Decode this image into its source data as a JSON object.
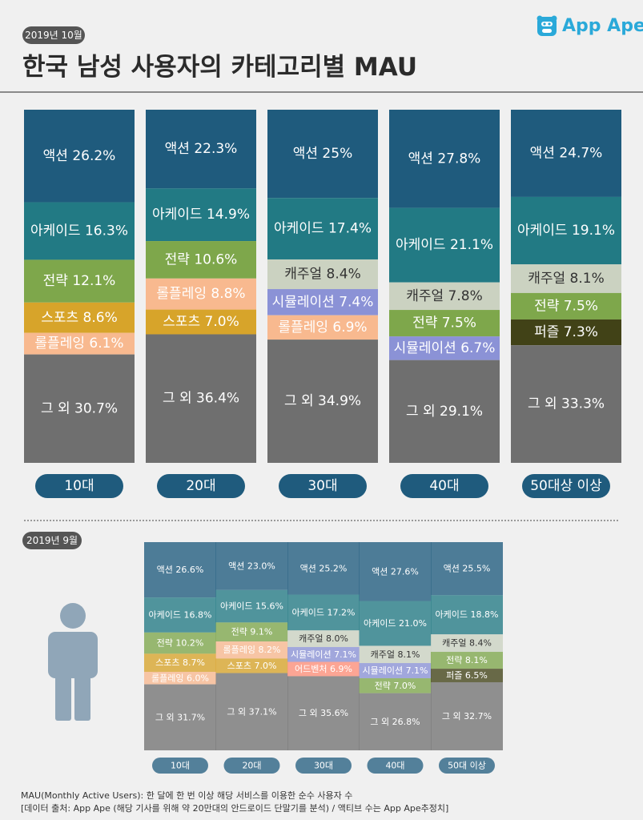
{
  "header": {
    "date_oct": "2019년 10월",
    "title": "한국 남성 사용자의 카테고리별 MAU",
    "logo_text": "App Ape",
    "logo_icon": "ape-face-icon",
    "date_sep": "2019년 9월"
  },
  "footnote": {
    "line1": "MAU(Monthly Active Users):  한 달에 한 번 이상 해당 서비스를 이용한 순수 사용자 수",
    "line2": "[데이터 출처: App Ape (해당 기사를 위해 약 20만대의 안드로이드 단말기를 분석) / 액티브 수는 App Ape추정치]"
  },
  "colors": {
    "액션": "#1f5b7d",
    "아케이드": "#227a84",
    "캐주얼": "#cbd2c1",
    "전략": "#7ea74b",
    "롤플레잉": "#f8b98f",
    "스포츠": "#d7a42a",
    "시뮬레이션": "#8b92d6",
    "퍼즐": "#414217",
    "어드벤처": "#ff8f7a",
    "그 외": "#6f6f6f",
    "pill": "#1f5b7d"
  },
  "chart_data": [
    {
      "type": "bar",
      "stacked": true,
      "period": "2019년 10월",
      "categories": [
        "10대",
        "20대",
        "30대",
        "40대",
        "50대상 이상"
      ],
      "stacks": [
        [
          {
            "name": "액션",
            "value": 26.2,
            "label": "액션 26.2%"
          },
          {
            "name": "아케이드",
            "value": 16.3,
            "label": "아케이드 16.3%"
          },
          {
            "name": "전략",
            "value": 12.1,
            "label": "전략 12.1%"
          },
          {
            "name": "스포츠",
            "value": 8.6,
            "label": "스포츠 8.6%"
          },
          {
            "name": "롤플레잉",
            "value": 6.1,
            "label": "롤플레잉 6.1%"
          },
          {
            "name": "그 외",
            "value": 30.7,
            "label": "그 외 30.7%"
          }
        ],
        [
          {
            "name": "액션",
            "value": 22.3,
            "label": "액션 22.3%"
          },
          {
            "name": "아케이드",
            "value": 14.9,
            "label": "아케이드 14.9%"
          },
          {
            "name": "전략",
            "value": 10.6,
            "label": "전략 10.6%"
          },
          {
            "name": "롤플레잉",
            "value": 8.8,
            "label": "롤플레잉 8.8%"
          },
          {
            "name": "스포츠",
            "value": 7.0,
            "label": "스포츠 7.0%"
          },
          {
            "name": "그 외",
            "value": 36.4,
            "label": "그 외 36.4%"
          }
        ],
        [
          {
            "name": "액션",
            "value": 25,
            "label": "액션 25%"
          },
          {
            "name": "아케이드",
            "value": 17.4,
            "label": "아케이드 17.4%"
          },
          {
            "name": "캐주얼",
            "value": 8.4,
            "label": "캐주얼 8.4%"
          },
          {
            "name": "시뮬레이션",
            "value": 7.4,
            "label": "시뮬레이션 7.4%"
          },
          {
            "name": "롤플레잉",
            "value": 6.9,
            "label": "롤플레잉 6.9%"
          },
          {
            "name": "그 외",
            "value": 34.9,
            "label": "그 외 34.9%"
          }
        ],
        [
          {
            "name": "액션",
            "value": 27.8,
            "label": "액션 27.8%"
          },
          {
            "name": "아케이드",
            "value": 21.1,
            "label": "아케이드 21.1%"
          },
          {
            "name": "캐주얼",
            "value": 7.8,
            "label": "캐주얼 7.8%"
          },
          {
            "name": "전략",
            "value": 7.5,
            "label": "전략 7.5%"
          },
          {
            "name": "시뮬레이션",
            "value": 6.7,
            "label": "시뮬레이션 6.7%"
          },
          {
            "name": "그 외",
            "value": 29.1,
            "label": "그 외 29.1%"
          }
        ],
        [
          {
            "name": "액션",
            "value": 24.7,
            "label": "액션 24.7%"
          },
          {
            "name": "아케이드",
            "value": 19.1,
            "label": "아케이드 19.1%"
          },
          {
            "name": "캐주얼",
            "value": 8.1,
            "label": "캐주얼 8.1%"
          },
          {
            "name": "전략",
            "value": 7.5,
            "label": "전략 7.5%"
          },
          {
            "name": "퍼즐",
            "value": 7.3,
            "label": "퍼즐 7.3%"
          },
          {
            "name": "그 외",
            "value": 33.3,
            "label": "그 외 33.3%"
          }
        ]
      ]
    },
    {
      "type": "bar",
      "stacked": true,
      "period": "2019년 9월",
      "categories": [
        "10대",
        "20대",
        "30대",
        "40대",
        "50대 이상"
      ],
      "stacks": [
        [
          {
            "name": "액션",
            "value": 26.6,
            "label": "액션 26.6%"
          },
          {
            "name": "아케이드",
            "value": 16.8,
            "label": "아케이드 16.8%"
          },
          {
            "name": "전략",
            "value": 10.2,
            "label": "전략 10.2%"
          },
          {
            "name": "스포츠",
            "value": 8.7,
            "label": "스포츠 8.7%"
          },
          {
            "name": "롤플레잉",
            "value": 6.0,
            "label": "롤플레잉 6.0%"
          },
          {
            "name": "그 외",
            "value": 31.7,
            "label": "그 외 31.7%"
          }
        ],
        [
          {
            "name": "액션",
            "value": 23.0,
            "label": "액션 23.0%"
          },
          {
            "name": "아케이드",
            "value": 15.6,
            "label": "아케이드 15.6%"
          },
          {
            "name": "전략",
            "value": 9.1,
            "label": "전략 9.1%"
          },
          {
            "name": "롤플레잉",
            "value": 8.2,
            "label": "롤플레잉 8.2%"
          },
          {
            "name": "스포츠",
            "value": 7.0,
            "label": "스포츠 7.0%"
          },
          {
            "name": "그 외",
            "value": 37.1,
            "label": "그 외 37.1%"
          }
        ],
        [
          {
            "name": "액션",
            "value": 25.2,
            "label": "액션 25.2%"
          },
          {
            "name": "아케이드",
            "value": 17.2,
            "label": "아케이드 17.2%"
          },
          {
            "name": "캐주얼",
            "value": 8.0,
            "label": "캐주얼 8.0%"
          },
          {
            "name": "시뮬레이션",
            "value": 7.1,
            "label": "시뮬레이션 7.1%"
          },
          {
            "name": "어드벤처",
            "value": 6.9,
            "label": "어드벤처 6.9%"
          },
          {
            "name": "그 외",
            "value": 35.6,
            "label": "그 외 35.6%"
          }
        ],
        [
          {
            "name": "액션",
            "value": 27.6,
            "label": "액션 27.6%"
          },
          {
            "name": "아케이드",
            "value": 21.0,
            "label": "아케이드 21.0%"
          },
          {
            "name": "캐주얼",
            "value": 8.1,
            "label": "캐주얼 8.1%"
          },
          {
            "name": "시뮬레이션",
            "value": 7.1,
            "label": "시뮬레이션 7.1%"
          },
          {
            "name": "전략",
            "value": 7.0,
            "label": "전략 7.0%"
          },
          {
            "name": "그 외",
            "value": 26.8,
            "label": "그 외 26.8%"
          }
        ],
        [
          {
            "name": "액션",
            "value": 25.5,
            "label": "액션 25.5%"
          },
          {
            "name": "아케이드",
            "value": 18.8,
            "label": "아케이드 18.8%"
          },
          {
            "name": "캐주얼",
            "value": 8.4,
            "label": "캐주얼 8.4%"
          },
          {
            "name": "전략",
            "value": 8.1,
            "label": "전략 8.1%"
          },
          {
            "name": "퍼즐",
            "value": 6.5,
            "label": "퍼즐 6.5%"
          },
          {
            "name": "그 외",
            "value": 32.7,
            "label": "그 외 32.7%"
          }
        ]
      ]
    }
  ]
}
